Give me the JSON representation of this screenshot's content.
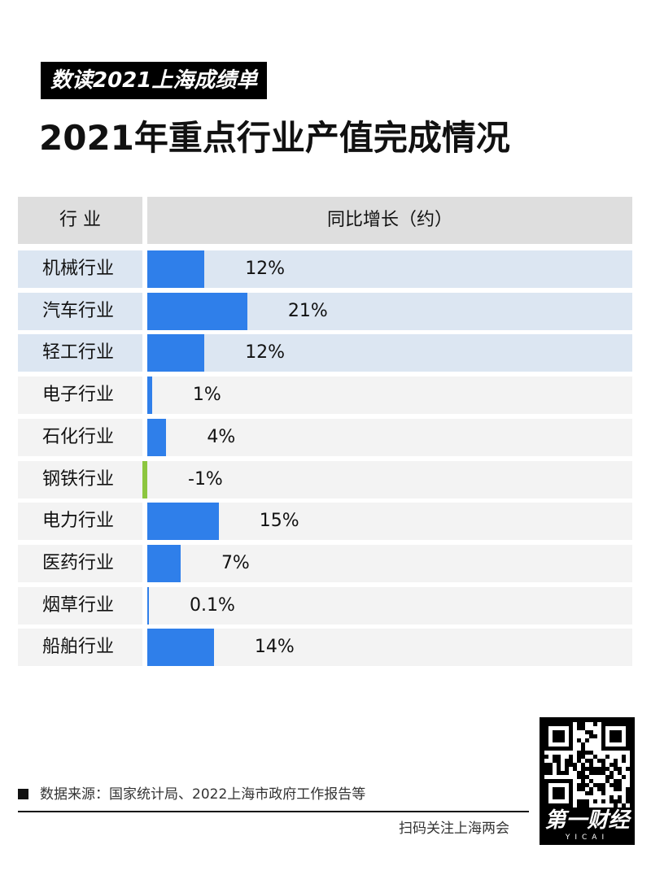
{
  "header": {
    "tag": "数读2021上海成绩单",
    "title": "2021年重点行业产值完成情况"
  },
  "table": {
    "col1_header": "行 业",
    "col2_header": "同比增长（约）"
  },
  "colors": {
    "positive_bar": "#2f7fea",
    "negative_bar": "#8cc63f",
    "highlight_row": "#dce6f2",
    "plain_row": "#f3f3f3",
    "header_bg": "#dedede"
  },
  "chart_data": {
    "type": "bar",
    "orientation": "horizontal",
    "categories": [
      "机械行业",
      "汽车行业",
      "轻工行业",
      "电子行业",
      "石化行业",
      "钢铁行业",
      "电力行业",
      "医药行业",
      "烟草行业",
      "船舶行业"
    ],
    "values": [
      12,
      21,
      12,
      1,
      4,
      -1,
      15,
      7,
      0.1,
      14
    ],
    "value_labels": [
      "12%",
      "21%",
      "12%",
      "1%",
      "4%",
      "-1%",
      "15%",
      "7%",
      "0.1%",
      "14%"
    ],
    "highlighted": [
      true,
      true,
      true,
      false,
      false,
      false,
      false,
      false,
      false,
      false
    ],
    "unit": "%",
    "xlim": [
      -1,
      21
    ]
  },
  "footer": {
    "source": "数据来源：国家统计局、2022上海市政府工作报告等",
    "scan_text": "扫码关注上海两会",
    "brand": "第一财经",
    "brand_sub": "YICAI"
  }
}
